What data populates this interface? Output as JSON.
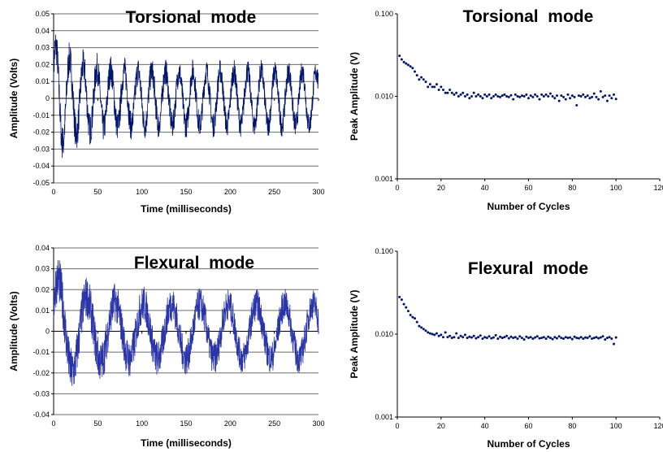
{
  "chart_data": [
    {
      "type": "line",
      "title": "Torsional  mode",
      "xlabel": "Time (milliseconds)",
      "ylabel": "Amplitude (Volts)",
      "xlim": [
        0,
        300
      ],
      "ylim": [
        -0.05,
        0.05
      ],
      "xticks": [
        "0",
        "50",
        "100",
        "150",
        "200",
        "250",
        "300"
      ],
      "yticks": [
        "-0.05",
        "-0.04",
        "-0.03",
        "-0.02",
        "-0.01",
        "0",
        "0.01",
        "0.02",
        "0.03",
        "0.04",
        "0.05"
      ],
      "grid": "horizontal",
      "color": "#00156e",
      "signal": {
        "frequency_khz": 0.0645,
        "start_amplitude": 0.033,
        "end_amplitude": 0.016,
        "decay_time_ms": 22,
        "noise": 0.0105
      }
    },
    {
      "type": "scatter",
      "title": "Torsional  mode",
      "xlabel": "Number of Cycles",
      "ylabel": "Peak Amplitude (V)",
      "xlim": [
        0,
        120
      ],
      "ylim": [
        0.001,
        0.1
      ],
      "yscale": "log",
      "xticks": [
        "0",
        "20",
        "40",
        "60",
        "80",
        "100",
        "120"
      ],
      "yticks": [
        "0.001",
        "0.010",
        "0.100"
      ],
      "color": "#00156e",
      "x": [
        1,
        2,
        3,
        4,
        5,
        6,
        7,
        8,
        9,
        10,
        11,
        12,
        13,
        14,
        15,
        16,
        17,
        18,
        19,
        20,
        21,
        22,
        23,
        24,
        25,
        26,
        27,
        28,
        29,
        30,
        31,
        32,
        33,
        34,
        35,
        36,
        37,
        38,
        39,
        40,
        41,
        42,
        43,
        44,
        45,
        46,
        47,
        48,
        49,
        50,
        51,
        52,
        53,
        54,
        55,
        56,
        57,
        58,
        59,
        60,
        61,
        62,
        63,
        64,
        65,
        66,
        67,
        68,
        69,
        70,
        71,
        72,
        73,
        74,
        75,
        76,
        77,
        78,
        79,
        80,
        81,
        82,
        83,
        84,
        85,
        86,
        87,
        88,
        89,
        90,
        91,
        92,
        93,
        94,
        95,
        96,
        97,
        98,
        99,
        100
      ],
      "y": [
        0.031,
        0.028,
        0.026,
        0.025,
        0.024,
        0.023,
        0.022,
        0.02,
        0.018,
        0.016,
        0.017,
        0.016,
        0.015,
        0.013,
        0.014,
        0.013,
        0.013,
        0.014,
        0.012,
        0.013,
        0.012,
        0.011,
        0.011,
        0.012,
        0.011,
        0.0105,
        0.011,
        0.01,
        0.0105,
        0.011,
        0.01,
        0.0105,
        0.0095,
        0.01,
        0.011,
        0.01,
        0.0105,
        0.01,
        0.0095,
        0.0105,
        0.01,
        0.0105,
        0.0095,
        0.01,
        0.0105,
        0.01,
        0.0098,
        0.0102,
        0.0105,
        0.01,
        0.0098,
        0.0103,
        0.0092,
        0.0105,
        0.01,
        0.0098,
        0.0102,
        0.01,
        0.0105,
        0.0095,
        0.0102,
        0.0098,
        0.0105,
        0.01,
        0.0092,
        0.0105,
        0.01,
        0.0105,
        0.01,
        0.0108,
        0.01,
        0.0095,
        0.0102,
        0.0088,
        0.0102,
        0.0098,
        0.0092,
        0.0105,
        0.0095,
        0.0102,
        0.0098,
        0.0078,
        0.0102,
        0.01,
        0.0105,
        0.0098,
        0.0102,
        0.0095,
        0.0098,
        0.0108,
        0.0098,
        0.0092,
        0.0115,
        0.0098,
        0.0102,
        0.0088,
        0.0102,
        0.0095,
        0.0105,
        0.0093
      ]
    },
    {
      "type": "line",
      "title": "Flexural  mode",
      "xlabel": "Time (milliseconds)",
      "ylabel": "Amplitude (Volts)",
      "xlim": [
        0,
        300
      ],
      "ylim": [
        -0.04,
        0.04
      ],
      "xticks": [
        "0",
        "50",
        "100",
        "150",
        "200",
        "250",
        "300"
      ],
      "yticks": [
        "-0.04",
        "-0.03",
        "-0.02",
        "-0.01",
        "0",
        "0.01",
        "0.02",
        "0.03",
        "0.04"
      ],
      "grid": "horizontal",
      "color": "#2a35a8",
      "signal": {
        "frequency_khz": 0.0312,
        "start_amplitude": 0.028,
        "end_amplitude": 0.013,
        "decay_time_ms": 25,
        "noise": 0.0115
      }
    },
    {
      "type": "scatter",
      "title": "Flexural  mode",
      "xlabel": "Number of Cycles",
      "ylabel": "Peak Amplitude (V)",
      "xlim": [
        0,
        120
      ],
      "ylim": [
        0.001,
        0.1
      ],
      "yscale": "log",
      "xticks": [
        "0",
        "20",
        "40",
        "60",
        "80",
        "100",
        "120"
      ],
      "yticks": [
        "0.001",
        "0.010",
        "0.100"
      ],
      "color": "#00156e",
      "x": [
        1,
        2,
        3,
        4,
        5,
        6,
        7,
        8,
        9,
        10,
        11,
        12,
        13,
        14,
        15,
        16,
        17,
        18,
        19,
        20,
        21,
        22,
        23,
        24,
        25,
        26,
        27,
        28,
        29,
        30,
        31,
        32,
        33,
        34,
        35,
        36,
        37,
        38,
        39,
        40,
        41,
        42,
        43,
        44,
        45,
        46,
        47,
        48,
        49,
        50,
        51,
        52,
        53,
        54,
        55,
        56,
        57,
        58,
        59,
        60,
        61,
        62,
        63,
        64,
        65,
        66,
        67,
        68,
        69,
        70,
        71,
        72,
        73,
        74,
        75,
        76,
        77,
        78,
        79,
        80,
        81,
        82,
        83,
        84,
        85,
        86,
        87,
        88,
        89,
        90,
        91,
        92,
        93,
        94,
        95,
        96,
        97,
        98,
        99,
        100
      ],
      "y": [
        0.028,
        0.026,
        0.023,
        0.021,
        0.019,
        0.017,
        0.016,
        0.0155,
        0.014,
        0.0125,
        0.012,
        0.0115,
        0.011,
        0.0105,
        0.0102,
        0.01,
        0.0098,
        0.0102,
        0.0095,
        0.0098,
        0.0092,
        0.0105,
        0.0092,
        0.0095,
        0.009,
        0.0092,
        0.0102,
        0.009,
        0.0095,
        0.0092,
        0.0098,
        0.009,
        0.0093,
        0.0091,
        0.0095,
        0.0089,
        0.0092,
        0.0096,
        0.0088,
        0.0092,
        0.009,
        0.0094,
        0.0089,
        0.0091,
        0.0097,
        0.0088,
        0.0093,
        0.009,
        0.0092,
        0.0095,
        0.0089,
        0.0093,
        0.009,
        0.0092,
        0.0088,
        0.0094,
        0.009,
        0.0086,
        0.0093,
        0.009,
        0.0092,
        0.0088,
        0.0091,
        0.0094,
        0.0089,
        0.009,
        0.0092,
        0.0088,
        0.0093,
        0.009,
        0.0087,
        0.0092,
        0.0089,
        0.0094,
        0.009,
        0.0088,
        0.0092,
        0.009,
        0.0091,
        0.0087,
        0.0093,
        0.009,
        0.0089,
        0.0092,
        0.0088,
        0.0091,
        0.009,
        0.0094,
        0.0088,
        0.009,
        0.0092,
        0.0089,
        0.0091,
        0.0094,
        0.0086,
        0.009,
        0.0092,
        0.0088,
        0.0076,
        0.0091
      ]
    }
  ]
}
